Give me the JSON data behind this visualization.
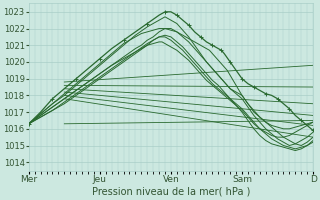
{
  "xlabel": "Pression niveau de la mer( hPa )",
  "ylim": [
    1013.5,
    1023.5
  ],
  "yticks": [
    1014,
    1015,
    1016,
    1017,
    1018,
    1019,
    1020,
    1021,
    1022,
    1023
  ],
  "xtick_labels": [
    "Mer",
    "Jeu",
    "Ven",
    "Sam",
    "D"
  ],
  "xtick_positions": [
    0,
    24,
    48,
    72,
    96
  ],
  "xlim": [
    0,
    96
  ],
  "bg_color": "#cce8e0",
  "grid_color": "#aacfc8",
  "line_color": "#2a6a30",
  "n_hours": 97,
  "straight_lines": {
    "start_x": 12,
    "end_x": 96,
    "start_y": [
      1018.8,
      1018.6,
      1018.4,
      1018.2,
      1018.0,
      1017.8,
      1016.3
    ],
    "end_y": [
      1019.8,
      1018.5,
      1017.5,
      1016.8,
      1016.2,
      1015.5,
      1016.5
    ]
  },
  "curves": [
    {
      "x": [
        0,
        4,
        8,
        12,
        16,
        20,
        24,
        28,
        32,
        36,
        40,
        44,
        46,
        48,
        50,
        52,
        54,
        56,
        58,
        60,
        62,
        64,
        65,
        66,
        68,
        70,
        72,
        74,
        76,
        78,
        80,
        82,
        84,
        86,
        88,
        90,
        92,
        94,
        96
      ],
      "y": [
        1016.3,
        1017.0,
        1017.8,
        1018.4,
        1019.0,
        1019.6,
        1020.2,
        1020.8,
        1021.3,
        1021.8,
        1022.3,
        1022.8,
        1023.0,
        1023.0,
        1022.8,
        1022.5,
        1022.2,
        1021.8,
        1021.5,
        1021.2,
        1021.0,
        1020.8,
        1020.7,
        1020.5,
        1020.0,
        1019.5,
        1019.0,
        1018.7,
        1018.5,
        1018.3,
        1018.1,
        1018.0,
        1017.8,
        1017.5,
        1017.2,
        1016.8,
        1016.5,
        1016.2,
        1015.9
      ],
      "marker": true,
      "lw": 0.9
    },
    {
      "x": [
        0,
        4,
        8,
        12,
        16,
        20,
        24,
        28,
        32,
        36,
        40,
        44,
        46,
        48,
        50,
        52,
        54,
        56,
        58,
        60,
        62,
        64,
        66,
        68,
        70,
        72,
        74,
        76,
        78,
        80,
        82,
        84,
        86,
        88,
        90,
        92,
        94,
        96
      ],
      "y": [
        1016.3,
        1016.9,
        1017.5,
        1018.0,
        1018.6,
        1019.2,
        1019.8,
        1020.4,
        1021.0,
        1021.6,
        1022.1,
        1022.5,
        1022.7,
        1022.5,
        1022.3,
        1021.9,
        1021.5,
        1021.0,
        1020.5,
        1020.0,
        1019.6,
        1019.2,
        1018.8,
        1018.4,
        1018.2,
        1018.0,
        1017.5,
        1017.0,
        1016.7,
        1016.4,
        1016.1,
        1015.8,
        1015.5,
        1015.3,
        1015.1,
        1015.0,
        1015.2,
        1015.5
      ],
      "marker": false,
      "lw": 0.7
    },
    {
      "x": [
        0,
        4,
        8,
        12,
        16,
        20,
        24,
        28,
        32,
        36,
        38,
        40,
        42,
        44,
        46,
        48,
        50,
        52,
        54,
        56,
        58,
        60,
        62,
        64,
        66,
        68,
        70,
        72,
        74,
        76,
        78,
        80,
        82,
        84,
        86,
        88,
        90,
        92,
        94,
        96
      ],
      "y": [
        1016.3,
        1016.8,
        1017.3,
        1017.8,
        1018.3,
        1018.8,
        1019.3,
        1019.8,
        1020.3,
        1020.8,
        1021.0,
        1021.3,
        1021.5,
        1021.8,
        1022.0,
        1022.0,
        1021.8,
        1021.5,
        1021.2,
        1020.8,
        1020.4,
        1020.0,
        1019.6,
        1019.2,
        1018.8,
        1018.4,
        1018.1,
        1017.8,
        1017.3,
        1016.8,
        1016.4,
        1016.0,
        1015.7,
        1015.4,
        1015.2,
        1015.0,
        1015.1,
        1015.3,
        1015.5,
        1015.8
      ],
      "marker": false,
      "lw": 0.7
    },
    {
      "x": [
        0,
        4,
        8,
        12,
        16,
        20,
        24,
        28,
        32,
        36,
        40,
        42,
        44,
        46,
        48,
        50,
        52,
        54,
        56,
        58,
        60,
        62,
        64,
        66,
        68,
        70,
        72,
        74,
        76,
        78,
        80,
        82,
        84,
        86,
        88,
        90,
        92,
        94,
        96
      ],
      "y": [
        1016.3,
        1016.7,
        1017.1,
        1017.5,
        1018.0,
        1018.5,
        1019.0,
        1019.5,
        1020.0,
        1020.5,
        1021.0,
        1021.3,
        1021.5,
        1021.5,
        1021.3,
        1021.0,
        1020.7,
        1020.3,
        1019.9,
        1019.5,
        1019.1,
        1018.7,
        1018.4,
        1018.1,
        1017.8,
        1017.5,
        1017.2,
        1016.8,
        1016.4,
        1016.0,
        1015.7,
        1015.4,
        1015.2,
        1015.0,
        1014.9,
        1014.8,
        1014.9,
        1015.0,
        1015.2
      ],
      "marker": false,
      "lw": 0.7
    },
    {
      "x": [
        0,
        4,
        8,
        12,
        16,
        20,
        24,
        28,
        32,
        36,
        40,
        44,
        46,
        48,
        50,
        52,
        54,
        56,
        58,
        60,
        62,
        64,
        66,
        68,
        70,
        72,
        74,
        76,
        78,
        80,
        82,
        84,
        86,
        88,
        90,
        92,
        94,
        96
      ],
      "y": [
        1016.3,
        1016.7,
        1017.1,
        1017.6,
        1018.1,
        1018.6,
        1019.1,
        1019.6,
        1020.1,
        1020.6,
        1021.1,
        1021.5,
        1021.6,
        1021.5,
        1021.2,
        1020.9,
        1020.5,
        1020.1,
        1019.7,
        1019.3,
        1018.9,
        1018.6,
        1018.2,
        1017.8,
        1017.4,
        1017.0,
        1016.5,
        1016.0,
        1015.6,
        1015.3,
        1015.1,
        1015.0,
        1014.9,
        1014.8,
        1014.7,
        1014.8,
        1015.0,
        1015.3
      ],
      "marker": false,
      "lw": 0.7
    },
    {
      "x": [
        0,
        4,
        8,
        12,
        16,
        20,
        24,
        28,
        30,
        32,
        34,
        36,
        38,
        40,
        42,
        44,
        45,
        46,
        48,
        50,
        52,
        54,
        56,
        58,
        60,
        62,
        64,
        66,
        68,
        70,
        72,
        74,
        76,
        78,
        80,
        82,
        84,
        86,
        88,
        90,
        92,
        94,
        96
      ],
      "y": [
        1016.3,
        1016.8,
        1017.3,
        1017.8,
        1018.3,
        1018.8,
        1019.3,
        1019.8,
        1020.0,
        1020.2,
        1020.4,
        1020.6,
        1020.8,
        1021.0,
        1021.1,
        1021.2,
        1021.2,
        1021.1,
        1020.9,
        1020.7,
        1020.4,
        1020.1,
        1019.7,
        1019.3,
        1018.9,
        1018.6,
        1018.3,
        1018.0,
        1017.7,
        1017.4,
        1017.1,
        1016.7,
        1016.3,
        1016.0,
        1015.8,
        1015.6,
        1015.5,
        1015.5,
        1015.6,
        1015.8,
        1016.0,
        1016.2,
        1016.4
      ],
      "marker": false,
      "lw": 0.7
    },
    {
      "x": [
        0,
        4,
        8,
        12,
        14,
        16,
        18,
        20,
        22,
        24,
        26,
        28,
        30,
        32,
        34,
        36,
        38,
        40,
        42,
        44,
        46,
        48,
        50,
        52,
        54,
        56,
        58,
        60,
        61,
        62,
        63,
        64,
        65,
        66,
        67,
        68,
        69,
        70,
        72,
        74,
        76,
        78,
        80,
        82,
        84,
        86,
        88,
        90,
        92,
        94,
        96
      ],
      "y": [
        1016.3,
        1016.9,
        1017.5,
        1018.1,
        1018.4,
        1018.7,
        1019.0,
        1019.3,
        1019.6,
        1019.9,
        1020.2,
        1020.5,
        1020.8,
        1021.1,
        1021.3,
        1021.5,
        1021.7,
        1021.8,
        1021.9,
        1022.0,
        1022.0,
        1021.9,
        1021.8,
        1021.6,
        1021.4,
        1021.2,
        1021.0,
        1020.8,
        1020.7,
        1020.5,
        1020.3,
        1020.1,
        1019.9,
        1019.7,
        1019.5,
        1019.2,
        1018.9,
        1018.6,
        1018.0,
        1017.5,
        1017.1,
        1016.7,
        1016.4,
        1016.2,
        1016.1,
        1016.0,
        1016.0,
        1016.1,
        1016.2,
        1016.3,
        1016.4
      ],
      "marker": false,
      "lw": 0.7
    }
  ]
}
